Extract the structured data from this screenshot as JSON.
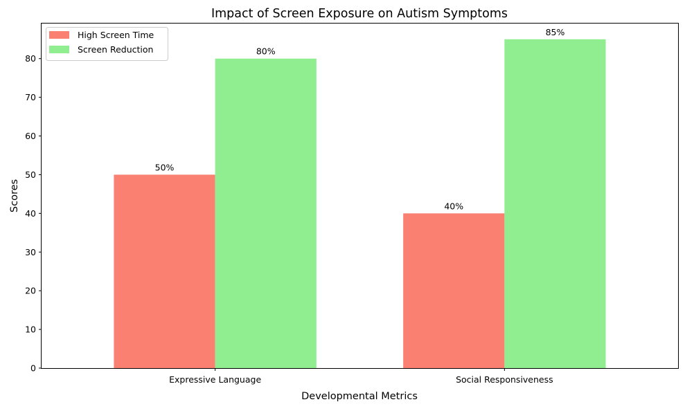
{
  "chart_data": {
    "type": "bar",
    "title": "Impact of Screen Exposure on Autism Symptoms",
    "xlabel": "Developmental Metrics",
    "ylabel": "Scores",
    "categories": [
      "Expressive Language",
      "Social Responsiveness"
    ],
    "series": [
      {
        "name": "High Screen Time",
        "values": [
          50,
          40
        ],
        "labels": [
          "50%",
          "40%"
        ],
        "color": "#fa8072"
      },
      {
        "name": "Screen Reduction",
        "values": [
          80,
          85
        ],
        "labels": [
          "80%",
          "85%"
        ],
        "color": "#90ee90"
      }
    ],
    "ylim": [
      0,
      89.25
    ],
    "yticks": [
      0,
      10,
      20,
      30,
      40,
      50,
      60,
      70,
      80
    ],
    "grid": false,
    "legend_position": "top-left"
  }
}
